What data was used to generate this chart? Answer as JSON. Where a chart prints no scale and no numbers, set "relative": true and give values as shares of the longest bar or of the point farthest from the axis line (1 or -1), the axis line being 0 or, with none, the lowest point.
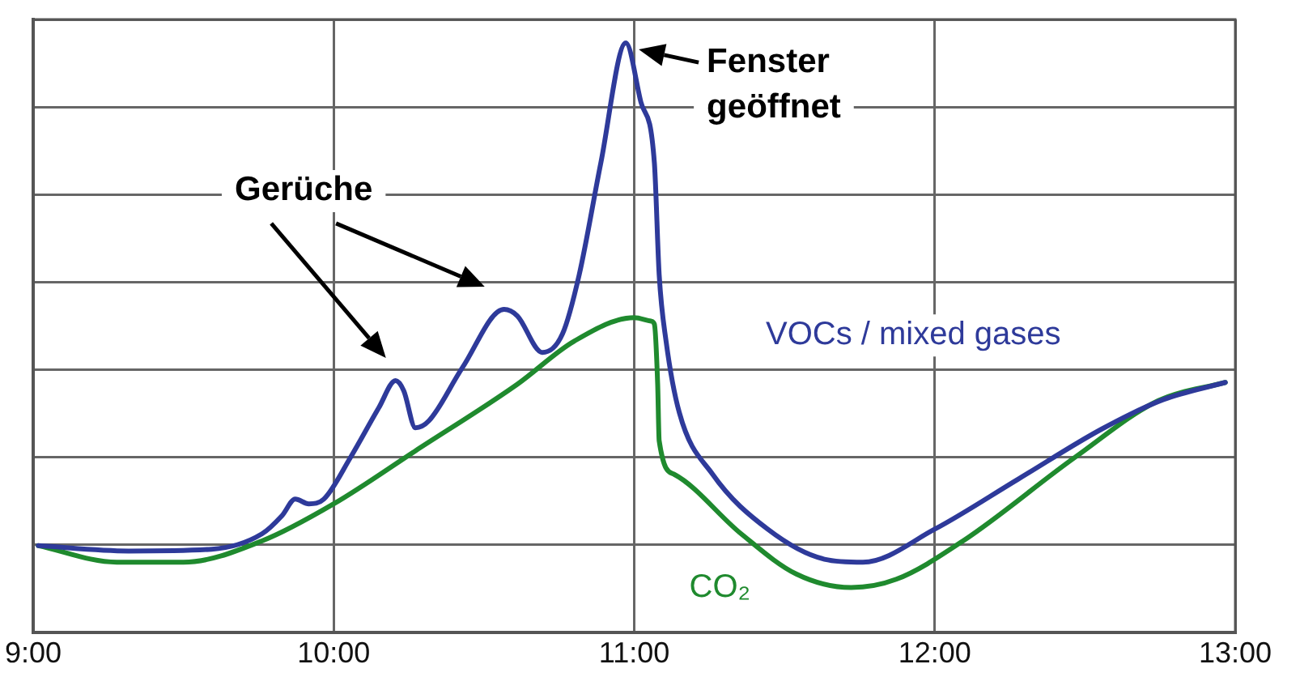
{
  "chart_data": {
    "type": "line",
    "relative": true,
    "grid": true,
    "legend": false,
    "marker": "none",
    "line_style": "solid",
    "xlim": [
      9,
      13
    ],
    "xticks": [
      {
        "value": 9,
        "label": "9:00"
      },
      {
        "value": 10,
        "label": "10:00"
      },
      {
        "value": 11,
        "label": "11:00"
      },
      {
        "value": 12,
        "label": "12:00"
      },
      {
        "value": 13,
        "label": "13:00"
      }
    ],
    "annotations": [
      "Gerüche",
      {
        "text": "Fenster\ngeöffnet",
        "x": 10.972,
        "y": 1
      }
    ],
    "series": [
      {
        "name": "VOCs / mixed gases",
        "color": "#2e3a9a",
        "x": [
          9.017,
          9.317,
          9.594,
          9.761,
          9.828,
          9.872,
          9.917,
          9.967,
          10.056,
          10.15,
          10.206,
          10.233,
          10.272,
          10.317,
          10.428,
          10.567,
          10.611,
          10.694,
          10.761,
          10.817,
          10.889,
          10.972,
          11.022,
          11.067,
          11.083,
          11.106,
          11.15,
          11.261,
          11.444,
          11.633,
          11.761,
          12.0,
          12.278,
          12.556,
          12.761,
          12.967
        ],
        "values": [
          0.147,
          0.138,
          0.141,
          0.167,
          0.198,
          0.226,
          0.218,
          0.226,
          0.297,
          0.381,
          0.427,
          0.41,
          0.347,
          0.359,
          0.449,
          0.548,
          0.537,
          0.475,
          0.506,
          0.607,
          0.797,
          1,
          0.9,
          0.797,
          0.607,
          0.494,
          0.373,
          0.268,
          0.175,
          0.124,
          0.119,
          0.175,
          0.26,
          0.345,
          0.395,
          0.424
        ]
      },
      {
        "name": "CO₂",
        "color": "#1f8a2e",
        "x": [
          9.017,
          9.278,
          9.5,
          9.761,
          10.0,
          10.272,
          10.611,
          10.8,
          11.0,
          11.056,
          11.067,
          11.078,
          11.083,
          11.133,
          11.356,
          11.539,
          11.722,
          11.872,
          12.094,
          12.467,
          12.744,
          12.967
        ],
        "values": [
          0.147,
          0.119,
          0.119,
          0.155,
          0.218,
          0.308,
          0.421,
          0.494,
          0.534,
          0.528,
          0.523,
          0.421,
          0.325,
          0.268,
          0.167,
          0.099,
          0.076,
          0.09,
          0.155,
          0.297,
          0.393,
          0.424
        ]
      }
    ]
  }
}
